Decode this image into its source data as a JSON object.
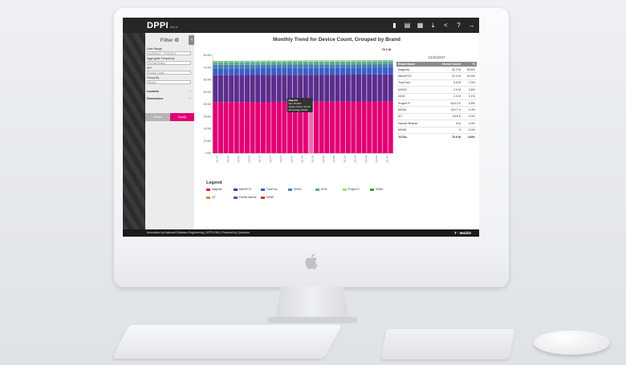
{
  "app": {
    "name": "DPPI",
    "version": "v0.1.4"
  },
  "toolbar": {
    "icons": [
      "bar-chart-icon",
      "chart-compare-icon",
      "table-icon",
      "download-icon",
      "share-icon",
      "help-icon",
      "logout-icon"
    ]
  },
  "filter": {
    "title": "Filter",
    "date_range_label": "Date Range",
    "date_range_value": "01/28/2017 - 12/31/2017",
    "aggregate_label": "Aggregate Frequency",
    "aggregate_value": "30 Day Rolling",
    "kpi_label": "KPI",
    "kpi_value": "Device Count",
    "groupby_label": "Group By",
    "groupby_value": "Brand",
    "location_label": "Location",
    "dimensions_label": "Dimensions",
    "reset_label": "Reset",
    "apply_label": "Apply"
  },
  "chart_data": {
    "type": "bar",
    "title": "Monthly Trend for Device Count, Grouped by Brand",
    "ylabel": "",
    "ylim": [
      0,
      80
    ],
    "yticks": [
      "80.0M",
      "70.0M",
      "60.0M",
      "50.0M",
      "40.0M",
      "30.0M",
      "20.0M",
      "10.0M",
      "0.0M"
    ],
    "xticks": [
      "Q1-16",
      "Q2-16",
      "Q3-16",
      "Q4-16",
      "Q1-17",
      "Q2-17",
      "Q3-17",
      "Q4-17",
      "Q1-18",
      "Q2-18",
      "Q3-18",
      "Q4-18",
      "Q1-19",
      "Q2-19",
      "Q3-19",
      "Q4-19",
      "Q1-20"
    ],
    "bar_count": 34,
    "highlight_index": 18,
    "end_label": "75.9 M",
    "series": [
      {
        "name": "Magenta",
        "color": "#e20074",
        "value": 42.2
      },
      {
        "name": "MetroPCS",
        "color": "#5b2d8e",
        "value": 22.0
      },
      {
        "name": "TracFone",
        "color": "#3b5fc8",
        "value": 5.5
      },
      {
        "name": "MVNO",
        "color": "#4a7fb0",
        "value": 2.9
      },
      {
        "name": "NCM",
        "color": "#5fa8a0",
        "value": 2.3
      },
      {
        "name": "Project Fi",
        "color": "#9be07a",
        "value": 0.6
      },
      {
        "name": "MVNA",
        "color": "#38a040",
        "value": 0.3
      }
    ]
  },
  "tooltip": {
    "line1": "Magenta",
    "line2": "Dec 18 2017",
    "line3": "Device Count: 41.8 M",
    "line4": "Percentage: 55.8%"
  },
  "table": {
    "date": "12/31/2017",
    "headers": [
      "Brand Name",
      "Device Count",
      "%"
    ],
    "rows": [
      [
        "Magenta",
        "42.2 M",
        "55.6%"
      ],
      [
        "MetroPCS",
        "22.0 M",
        "29.0%"
      ],
      [
        "TracFone",
        "5.5 M",
        "7.2%"
      ],
      [
        "MVNO",
        "2.9 M",
        "3.8%"
      ],
      [
        "NCM",
        "2.3 M",
        "3.1%"
      ],
      [
        "Project Fi",
        "618.2 K",
        "0.8%"
      ],
      [
        "MVNA",
        "319.7 K",
        "0.4%"
      ],
      [
        "IoT",
        "18.8 K",
        "0.0%"
      ],
      [
        "Partner Brands",
        "214",
        "0.0%"
      ],
      [
        "MVNE",
        "9",
        "0.0%"
      ]
    ],
    "total": [
      "TOTAL",
      "75.9 M",
      "100%"
    ]
  },
  "legend": {
    "title": "Legend",
    "items": [
      {
        "label": "Magenta",
        "color": "#e20074"
      },
      {
        "label": "MetroPCS",
        "color": "#5b2d8e"
      },
      {
        "label": "TracFone",
        "color": "#3b5fc8"
      },
      {
        "label": "MVNO",
        "color": "#4a7fb0"
      },
      {
        "label": "NCM",
        "color": "#5fa8a0"
      },
      {
        "label": "Project Fi",
        "color": "#9be07a"
      },
      {
        "label": "MVNA",
        "color": "#38a040"
      },
      {
        "label": "IoT",
        "color": "#f08020"
      },
      {
        "label": "Partner Brands",
        "color": "#7b3fb8"
      },
      {
        "label": "MVNE",
        "color": "#d0381a"
      }
    ]
  },
  "footer": {
    "text": "Innovation by National Software Engineering | NTPI-ESA | Powered by Quantum",
    "logo": "T · Mobile"
  }
}
